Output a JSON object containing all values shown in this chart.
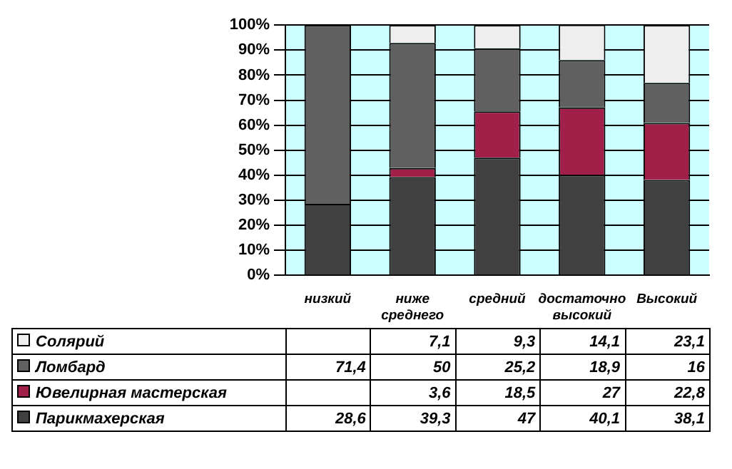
{
  "chart_data": {
    "type": "bar",
    "stacked": true,
    "categories": [
      "низкий",
      "ниже среднего",
      "средний",
      "достаточно высокий",
      "Высокий"
    ],
    "series": [
      {
        "name": "Парикмахерская",
        "color": "#404040",
        "values": [
          28.6,
          39.3,
          47,
          40.1,
          38.1
        ],
        "value_labels": [
          "28,6",
          "39,3",
          "47",
          "40,1",
          "38,1"
        ]
      },
      {
        "name": "Ювелирная мастерская",
        "color": "#a0204a",
        "values": [
          null,
          3.6,
          18.5,
          27,
          22.8
        ],
        "value_labels": [
          null,
          "3,6",
          "18,5",
          "27",
          "22,8"
        ]
      },
      {
        "name": "Ломбард",
        "color": "#606060",
        "values": [
          71.4,
          50,
          25.2,
          18.9,
          16
        ],
        "value_labels": [
          "71,4",
          "50",
          "25,2",
          "18,9",
          "16"
        ]
      },
      {
        "name": "Солярий",
        "color": "#eeeeee",
        "values": [
          null,
          7.1,
          9.3,
          14.1,
          23.1
        ],
        "value_labels": [
          null,
          "7,1",
          "9,3",
          "14,1",
          "23,1"
        ]
      }
    ],
    "ylim": [
      0,
      100
    ],
    "yticks": [
      {
        "value": 0,
        "label": "0%"
      },
      {
        "value": 10,
        "label": "10%"
      },
      {
        "value": 20,
        "label": "20%"
      },
      {
        "value": 30,
        "label": "30%"
      },
      {
        "value": 40,
        "label": "40%"
      },
      {
        "value": 50,
        "label": "50%"
      },
      {
        "value": 60,
        "label": "60%"
      },
      {
        "value": 70,
        "label": "70%"
      },
      {
        "value": 80,
        "label": "80%"
      },
      {
        "value": 90,
        "label": "90%"
      },
      {
        "value": 100,
        "label": "100%"
      }
    ],
    "grid": "y",
    "legend": "bottom"
  }
}
